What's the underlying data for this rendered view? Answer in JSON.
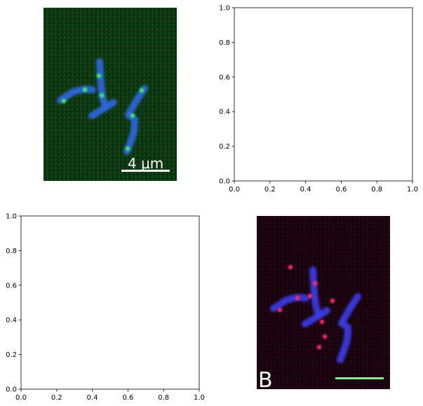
{
  "figure": {
    "background": "#ffffff",
    "axis_color": "#000000"
  },
  "chart_data": [
    {
      "type": "image",
      "panel": "top-left",
      "description_color": "green-background fluorescence micrograph",
      "background_color": "#0f3a12",
      "cell_color": "#2f66e0",
      "spot_color": "#3cf06a",
      "scale_bar_label": "4 μm",
      "scale_bar_color": "#ffffff",
      "show_axes": false
    },
    {
      "type": "scatter",
      "panel": "top-right",
      "x": [],
      "y": [],
      "xlim": [
        0,
        1
      ],
      "ylim": [
        0,
        1
      ],
      "xticks": [
        "0.0",
        "0.2",
        "0.4",
        "0.6",
        "0.8",
        "1.0"
      ],
      "yticks": [
        "0.0",
        "0.2",
        "0.4",
        "0.6",
        "0.8",
        "1.0"
      ],
      "grid": false
    },
    {
      "type": "scatter",
      "panel": "bottom-left",
      "x": [],
      "y": [],
      "xlim": [
        0,
        1
      ],
      "ylim": [
        0,
        1
      ],
      "xticks": [
        "0.0",
        "0.2",
        "0.4",
        "0.6",
        "0.8",
        "1.0"
      ],
      "yticks": [
        "0.0",
        "0.2",
        "0.4",
        "0.6",
        "0.8",
        "1.0"
      ],
      "grid": false
    },
    {
      "type": "image",
      "panel": "bottom-right",
      "background_color": "#1a0410",
      "cell_color": "#3a3ae8",
      "spot_color": "#ff2a6a",
      "panel_label": "B",
      "panel_label_color": "#ffffff",
      "scale_bar_color": "#90ee90",
      "show_axes": false
    }
  ]
}
